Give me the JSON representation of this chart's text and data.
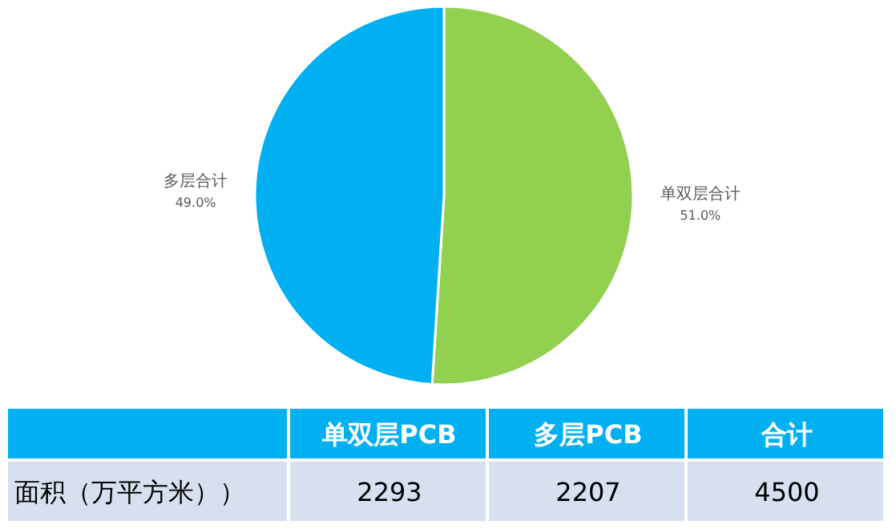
{
  "chart_data": [
    {
      "type": "pie",
      "categories": [
        "单双层合计",
        "多层合计"
      ],
      "values": [
        51.0,
        49.0
      ],
      "colors": [
        "#92d050",
        "#00b0f0"
      ],
      "value_labels": [
        "51.0%",
        "49.0%"
      ]
    },
    {
      "type": "other",
      "ylabel": "面积（万平方米））",
      "categories": [
        "单双层PCB",
        "多层PCB",
        "合计"
      ],
      "values": [
        2293,
        2207,
        4500
      ],
      "data_labels": true
    }
  ]
}
